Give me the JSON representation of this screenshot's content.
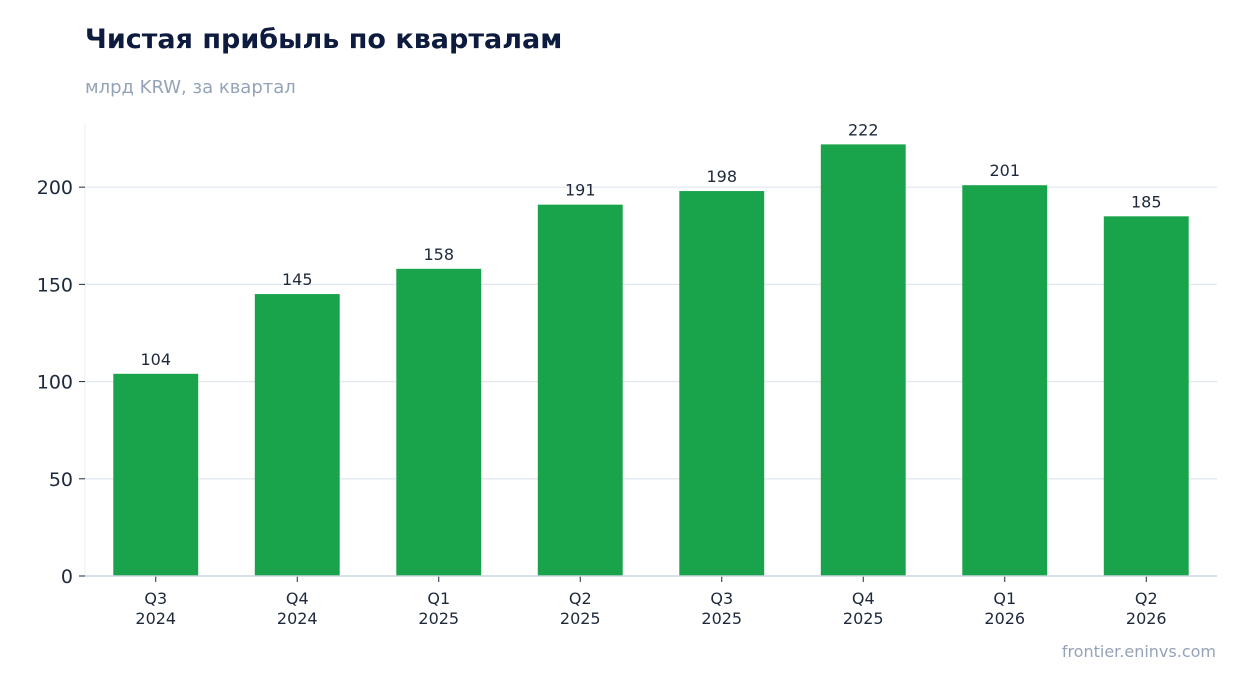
{
  "header": {
    "title": "Чистая прибыль по кварталам",
    "subtitle": "млрд KRW, за квартал"
  },
  "footer": {
    "source": "frontier.eninvs.com"
  },
  "colors": {
    "bar": "#19a34a",
    "grid": "#e2e8f0",
    "axis": "#cbd5e1",
    "title": "#0d1b3e",
    "muted": "#94a3b8",
    "text": "#1e293b"
  },
  "chart_data": {
    "type": "bar",
    "title": "Чистая прибыль по кварталам",
    "subtitle": "млрд KRW, за квартал",
    "categories": [
      [
        "Q3",
        "2024"
      ],
      [
        "Q4",
        "2024"
      ],
      [
        "Q1",
        "2025"
      ],
      [
        "Q2",
        "2025"
      ],
      [
        "Q3",
        "2025"
      ],
      [
        "Q4",
        "2025"
      ],
      [
        "Q1",
        "2026"
      ],
      [
        "Q2",
        "2026"
      ]
    ],
    "values": [
      104,
      145,
      158,
      191,
      198,
      222,
      201,
      185
    ],
    "value_labels": [
      "104",
      "145",
      "158",
      "191",
      "198",
      "222",
      "201",
      "185"
    ],
    "yticks": [
      0,
      50,
      100,
      150,
      200
    ],
    "ylim": [
      0,
      233
    ],
    "grid": true,
    "legend": "none"
  }
}
